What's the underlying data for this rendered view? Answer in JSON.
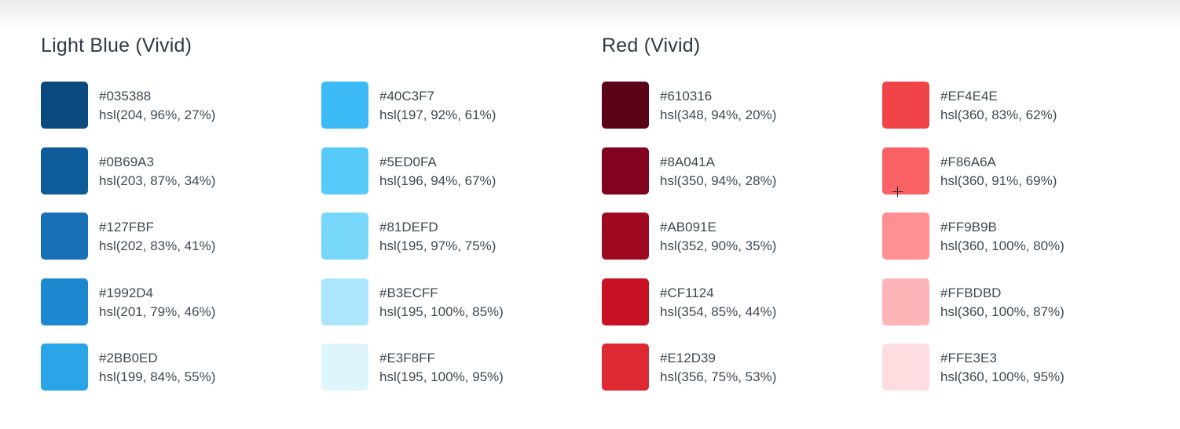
{
  "palettes": [
    {
      "title": "Light Blue (Vivid)",
      "columns": [
        [
          {
            "hex": "#035388",
            "hsl": "hsl(204, 96%, 27%)",
            "color": "#0B4A7E"
          },
          {
            "hex": "#0B69A3",
            "hsl": "hsl(203, 87%, 34%)",
            "color": "#0E5C9A"
          },
          {
            "hex": "#127FBF",
            "hsl": "hsl(202, 83%, 41%)",
            "color": "#1870B6"
          },
          {
            "hex": "#1992D4",
            "hsl": "hsl(201, 79%, 46%)",
            "color": "#1B88CF"
          },
          {
            "hex": "#2BB0ED",
            "hsl": "hsl(199, 84%, 55%)",
            "color": "#2AA6E8"
          }
        ],
        [
          {
            "hex": "#40C3F7",
            "hsl": "hsl(197, 92%, 61%)",
            "color": "#3BBAF5"
          },
          {
            "hex": "#5ED0FA",
            "hsl": "hsl(196, 94%, 67%)",
            "color": "#56CBF9"
          },
          {
            "hex": "#81DEFD",
            "hsl": "hsl(195, 97%, 75%)",
            "color": "#78D8FB"
          },
          {
            "hex": "#B3ECFF",
            "hsl": "hsl(195, 100%, 85%)",
            "color": "#ACE6FD"
          },
          {
            "hex": "#E3F8FF",
            "hsl": "hsl(195, 100%, 95%)",
            "color": "#DFF5FE"
          }
        ]
      ]
    },
    {
      "title": "Red (Vivid)",
      "columns": [
        [
          {
            "hex": "#610316",
            "hsl": "hsl(348, 94%, 20%)",
            "color": "#5B0418"
          },
          {
            "hex": "#8A041A",
            "hsl": "hsl(350, 94%, 28%)",
            "color": "#82031D"
          },
          {
            "hex": "#AB091E",
            "hsl": "hsl(352, 90%, 35%)",
            "color": "#A00A20"
          },
          {
            "hex": "#CF1124",
            "hsl": "hsl(354, 85%, 44%)",
            "color": "#C91123"
          },
          {
            "hex": "#E12D39",
            "hsl": "hsl(356, 75%, 53%)",
            "color": "#DE2832"
          }
        ],
        [
          {
            "hex": "#EF4E4E",
            "hsl": "hsl(360, 83%, 62%)",
            "color": "#F04448"
          },
          {
            "hex": "#F86A6A",
            "hsl": "hsl(360, 91%, 69%)",
            "color": "#F96165"
          },
          {
            "hex": "#FF9B9B",
            "hsl": "hsl(360, 100%, 80%)",
            "color": "#FE9093"
          },
          {
            "hex": "#FFBDBD",
            "hsl": "hsl(360, 100%, 87%)",
            "color": "#FEB5B7"
          },
          {
            "hex": "#FFE3E3",
            "hsl": "hsl(360, 100%, 95%)",
            "color": "#FDDDE0"
          }
        ]
      ]
    }
  ]
}
